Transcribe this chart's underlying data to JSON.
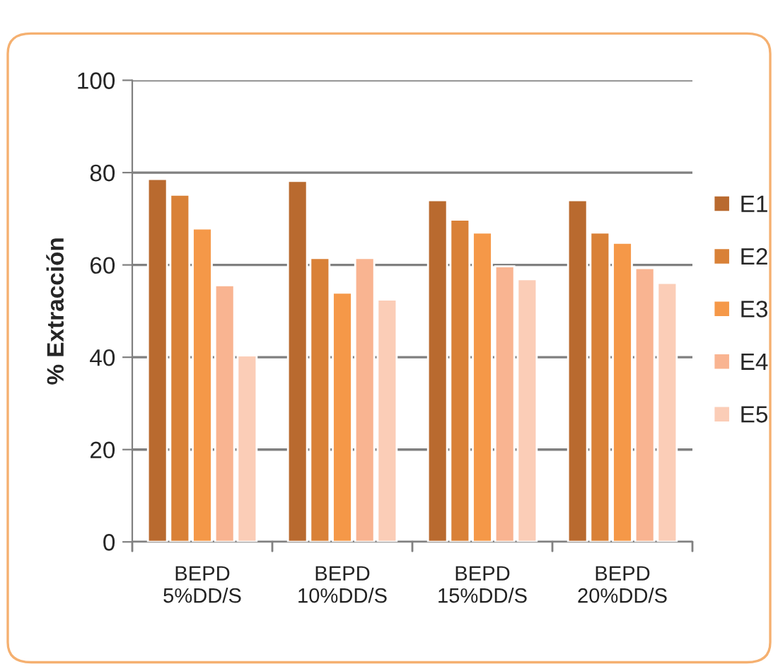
{
  "chart_data": {
    "type": "bar",
    "ylabel": "% Extracción",
    "categories": [
      "BEPD\n5%DD/S",
      "BEPD\n10%DD/S",
      "BEPD\n15%DD/S",
      "BEPD\n20%DD/S"
    ],
    "series": [
      {
        "name": "E1",
        "color": "#b96a2f",
        "values": [
          78.6,
          78.2,
          74.0,
          74.0
        ]
      },
      {
        "name": "E2",
        "color": "#d98137",
        "values": [
          75.2,
          61.5,
          69.8,
          67.0
        ]
      },
      {
        "name": "E3",
        "color": "#f59848",
        "values": [
          67.9,
          54.0,
          67.0,
          64.8
        ]
      },
      {
        "name": "E4",
        "color": "#f9b491",
        "values": [
          55.6,
          61.5,
          59.7,
          59.3
        ]
      },
      {
        "name": "E5",
        "color": "#fbcdb7",
        "values": [
          40.4,
          52.5,
          56.9,
          56.1
        ]
      }
    ],
    "ylim": [
      0,
      100
    ],
    "yticks": [
      0,
      20,
      40,
      60,
      80,
      100
    ],
    "grid": "y",
    "legend": "right"
  }
}
